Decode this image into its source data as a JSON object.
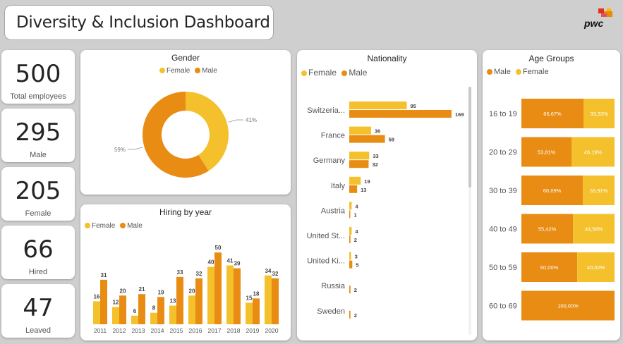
{
  "dashboard": {
    "title": "Diversity & Inclusion Dashboard",
    "logo_text": "pwc"
  },
  "colors": {
    "female": "#f4c02c",
    "male": "#e88c13",
    "background": "#d0cfcf"
  },
  "kpis": [
    {
      "value": "500",
      "label": "Total employees"
    },
    {
      "value": "295",
      "label": "Male"
    },
    {
      "value": "205",
      "label": "Female"
    },
    {
      "value": "66",
      "label": "Hired"
    },
    {
      "value": "47",
      "label": "Leaved"
    }
  ],
  "gender": {
    "title": "Gender",
    "legend": [
      "Female",
      "Male"
    ],
    "female_label": "41%",
    "male_label": "59%"
  },
  "hiring": {
    "title": "Hiring by year",
    "legend": [
      "Female",
      "Male"
    ]
  },
  "nationality": {
    "title": "Nationality",
    "legend": [
      "Female",
      "Male"
    ]
  },
  "age": {
    "title": "Age Groups",
    "legend": [
      "Male",
      "Female"
    ]
  },
  "chart_data": [
    {
      "type": "pie",
      "title": "Gender",
      "categories": [
        "Female",
        "Male"
      ],
      "values": [
        41,
        59
      ],
      "value_labels": [
        "41%",
        "59%"
      ],
      "donut": true,
      "legend": "top"
    },
    {
      "type": "bar",
      "title": "Hiring by year",
      "categories": [
        "2011",
        "2012",
        "2013",
        "2014",
        "2015",
        "2016",
        "2017",
        "2018",
        "2019",
        "2020"
      ],
      "series": [
        {
          "name": "Female",
          "values": [
            16,
            12,
            6,
            8,
            13,
            20,
            40,
            41,
            15,
            34
          ]
        },
        {
          "name": "Male",
          "values": [
            31,
            20,
            21,
            19,
            33,
            32,
            50,
            39,
            18,
            32
          ]
        }
      ],
      "ylim": [
        0,
        55
      ],
      "legend": "top-left"
    },
    {
      "type": "bar",
      "orientation": "horizontal",
      "title": "Nationality",
      "categories": [
        "Switzeria...",
        "France",
        "Germany",
        "Italy",
        "Austria",
        "United St...",
        "United Ki...",
        "Russia",
        "Sweden"
      ],
      "series": [
        {
          "name": "Female",
          "values": [
            95,
            36,
            33,
            19,
            4,
            4,
            3,
            null,
            null
          ]
        },
        {
          "name": "Male",
          "values": [
            169,
            59,
            32,
            13,
            1,
            2,
            5,
            2,
            2
          ]
        }
      ],
      "xlim": [
        0,
        175
      ],
      "legend": "top-left"
    },
    {
      "type": "bar",
      "orientation": "horizontal",
      "stacked": "100%",
      "title": "Age Groups",
      "categories": [
        "16 to 19",
        "20 to 29",
        "30 to 39",
        "40 to 49",
        "50 to 59",
        "60 to 69"
      ],
      "series": [
        {
          "name": "Male",
          "values": [
            66.67,
            53.81,
            66.09,
            55.42,
            60.0,
            100.0
          ],
          "labels": [
            "66,67%",
            "53,81%",
            "66,09%",
            "55,42%",
            "60,00%",
            "100,00%"
          ]
        },
        {
          "name": "Female",
          "values": [
            33.33,
            46.19,
            33.91,
            44.58,
            40.0,
            null
          ],
          "labels": [
            "33,33%",
            "46,19%",
            "33,91%",
            "44,58%",
            "40,00%",
            ""
          ]
        }
      ],
      "legend": "top-left"
    }
  ]
}
